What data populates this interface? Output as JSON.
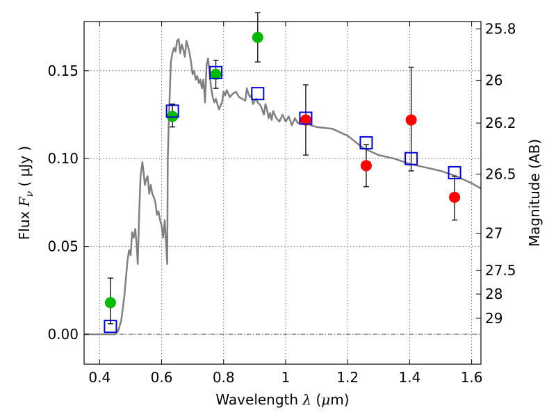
{
  "chart_data": {
    "type": "scatter",
    "title": "",
    "xlabel": {
      "prefix": "Wavelength  ",
      "symbol": "λ",
      "unit_open": " (",
      "unit_symbol": "μ",
      "unit_close": "m)"
    },
    "ylabel": {
      "prefix": "Flux  ",
      "symbol": "F",
      "subscript": "ν",
      "unit": "  ( μJy )"
    },
    "y2label": "Magnitude (AB)",
    "xlim": [
      0.35,
      1.63
    ],
    "ylim": [
      -0.017,
      0.178
    ],
    "grid": true,
    "x_ticks": [
      {
        "value": 0.4,
        "label": "0.4"
      },
      {
        "value": 0.6,
        "label": "0.6"
      },
      {
        "value": 0.8,
        "label": "0.8"
      },
      {
        "value": 1.0,
        "label": "1"
      },
      {
        "value": 1.2,
        "label": "1.2"
      },
      {
        "value": 1.4,
        "label": "1.4"
      },
      {
        "value": 1.6,
        "label": "1.6"
      }
    ],
    "y_ticks": [
      {
        "value": 0.0,
        "label": "0.00"
      },
      {
        "value": 0.05,
        "label": "0.05"
      },
      {
        "value": 0.1,
        "label": "0.10"
      },
      {
        "value": 0.15,
        "label": "0.15"
      }
    ],
    "y2_ticks": [
      {
        "value": 25.8,
        "label": "25.8"
      },
      {
        "value": 26.0,
        "label": "26"
      },
      {
        "value": 26.2,
        "label": "26.2"
      },
      {
        "value": 26.5,
        "label": "26.5"
      },
      {
        "value": 27.0,
        "label": "27"
      },
      {
        "value": 27.5,
        "label": "27.5"
      },
      {
        "value": 28.0,
        "label": "28"
      },
      {
        "value": 29.0,
        "label": "29"
      }
    ],
    "zero_line": 0.0,
    "colors": {
      "template": "#808080",
      "optical": "#00bb00",
      "nir": "#ff0000",
      "model_box": "#0000dd",
      "errorbar": "#000000",
      "grid": "#555555"
    },
    "template_spectrum": {
      "x": [
        0.35,
        0.45,
        0.46,
        0.47,
        0.475,
        0.48,
        0.485,
        0.49,
        0.495,
        0.5,
        0.505,
        0.51,
        0.515,
        0.52,
        0.523,
        0.528,
        0.532,
        0.538,
        0.542,
        0.546,
        0.55,
        0.555,
        0.56,
        0.565,
        0.57,
        0.575,
        0.58,
        0.585,
        0.59,
        0.595,
        0.6,
        0.605,
        0.61,
        0.615,
        0.618,
        0.62,
        0.623,
        0.626,
        0.63,
        0.635,
        0.64,
        0.645,
        0.65,
        0.655,
        0.66,
        0.665,
        0.67,
        0.675,
        0.68,
        0.685,
        0.69,
        0.695,
        0.7,
        0.705,
        0.71,
        0.715,
        0.72,
        0.725,
        0.73,
        0.735,
        0.74,
        0.745,
        0.75,
        0.755,
        0.76,
        0.765,
        0.77,
        0.775,
        0.78,
        0.785,
        0.79,
        0.795,
        0.8,
        0.805,
        0.81,
        0.82,
        0.83,
        0.84,
        0.85,
        0.86,
        0.87,
        0.875,
        0.88,
        0.885,
        0.89,
        0.895,
        0.9,
        0.905,
        0.91,
        0.92,
        0.93,
        0.935,
        0.94,
        0.945,
        0.95,
        0.955,
        0.96,
        0.97,
        0.98,
        0.99,
        1.0,
        1.01,
        1.02,
        1.03,
        1.04,
        1.05,
        1.06,
        1.07,
        1.08,
        1.1,
        1.15,
        1.2,
        1.25,
        1.3,
        1.35,
        1.4,
        1.45,
        1.5,
        1.55,
        1.6,
        1.63
      ],
      "y": [
        0.0,
        0.0,
        0.002,
        0.008,
        0.015,
        0.022,
        0.032,
        0.042,
        0.048,
        0.045,
        0.058,
        0.055,
        0.06,
        0.05,
        0.04,
        0.07,
        0.09,
        0.098,
        0.092,
        0.085,
        0.088,
        0.09,
        0.08,
        0.085,
        0.08,
        0.078,
        0.075,
        0.068,
        0.07,
        0.065,
        0.062,
        0.055,
        0.065,
        0.05,
        0.04,
        0.1,
        0.12,
        0.135,
        0.155,
        0.16,
        0.163,
        0.161,
        0.167,
        0.168,
        0.16,
        0.165,
        0.162,
        0.158,
        0.167,
        0.164,
        0.16,
        0.155,
        0.148,
        0.15,
        0.145,
        0.147,
        0.143,
        0.145,
        0.14,
        0.145,
        0.132,
        0.153,
        0.157,
        0.148,
        0.14,
        0.135,
        0.132,
        0.134,
        0.131,
        0.128,
        0.13,
        0.132,
        0.138,
        0.136,
        0.139,
        0.135,
        0.137,
        0.138,
        0.135,
        0.134,
        0.133,
        0.14,
        0.137,
        0.135,
        0.136,
        0.131,
        0.133,
        0.134,
        0.132,
        0.13,
        0.125,
        0.131,
        0.128,
        0.123,
        0.126,
        0.122,
        0.127,
        0.123,
        0.121,
        0.125,
        0.121,
        0.124,
        0.119,
        0.123,
        0.12,
        0.122,
        0.12,
        0.121,
        0.119,
        0.118,
        0.117,
        0.113,
        0.106,
        0.102,
        0.1,
        0.097,
        0.095,
        0.093,
        0.09,
        0.086,
        0.083
      ]
    },
    "series": [
      {
        "marker": "circle",
        "color": "#00bb00",
        "points": [
          {
            "x": 0.435,
            "y": 0.018,
            "err_lo": 0.012,
            "err_hi": 0.014
          },
          {
            "x": 0.635,
            "y": 0.124,
            "err_lo": 0.006,
            "err_hi": 0.007
          },
          {
            "x": 0.775,
            "y": 0.148,
            "err_lo": 0.008,
            "err_hi": 0.008
          },
          {
            "x": 0.91,
            "y": 0.169,
            "err_lo": 0.014,
            "err_hi": 0.014
          }
        ]
      },
      {
        "marker": "circle",
        "color": "#ff0000",
        "points": [
          {
            "x": 1.065,
            "y": 0.122,
            "err_lo": 0.02,
            "err_hi": 0.02
          },
          {
            "x": 1.26,
            "y": 0.096,
            "err_lo": 0.012,
            "err_hi": 0.012
          },
          {
            "x": 1.405,
            "y": 0.122,
            "err_lo": 0.029,
            "err_hi": 0.03
          },
          {
            "x": 1.545,
            "y": 0.078,
            "err_lo": 0.013,
            "err_hi": 0.012
          }
        ]
      },
      {
        "marker": "square-open",
        "color": "#0000dd",
        "points": [
          {
            "x": 0.435,
            "y": 0.0045
          },
          {
            "x": 0.635,
            "y": 0.127
          },
          {
            "x": 0.775,
            "y": 0.149
          },
          {
            "x": 0.91,
            "y": 0.137
          },
          {
            "x": 1.065,
            "y": 0.123
          },
          {
            "x": 1.26,
            "y": 0.109
          },
          {
            "x": 1.405,
            "y": 0.1
          },
          {
            "x": 1.545,
            "y": 0.092
          }
        ]
      }
    ]
  }
}
